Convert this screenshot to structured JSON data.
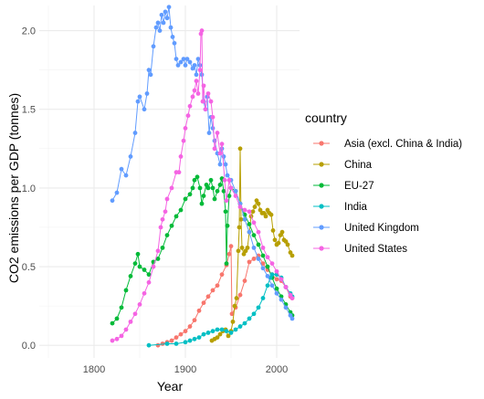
{
  "chart_data": {
    "type": "line",
    "xlabel": "Year",
    "ylabel": "CO2 emissions per GDP (tonnes)",
    "xlim": [
      1740,
      2025
    ],
    "ylim": [
      -0.08,
      2.16
    ],
    "x_ticks": [
      1800,
      1900,
      2000
    ],
    "x_tick_labels": [
      "1800",
      "1900",
      "2000"
    ],
    "y_ticks": [
      0,
      0.5,
      1,
      1.5,
      2
    ],
    "y_tick_labels": [
      "0.0",
      "0.5",
      "1.0",
      "1.5",
      "2.0"
    ],
    "grid": true,
    "legend_title": "country",
    "legend_position": "right",
    "series": [
      {
        "name": "Asia (excl. China & India)",
        "color": "#F8766D",
        "points": [
          [
            1870,
            0.0
          ],
          [
            1875,
            0.01
          ],
          [
            1880,
            0.02
          ],
          [
            1885,
            0.03
          ],
          [
            1890,
            0.05
          ],
          [
            1895,
            0.07
          ],
          [
            1900,
            0.09
          ],
          [
            1905,
            0.12
          ],
          [
            1910,
            0.16
          ],
          [
            1915,
            0.22
          ],
          [
            1920,
            0.27
          ],
          [
            1925,
            0.31
          ],
          [
            1930,
            0.35
          ],
          [
            1935,
            0.38
          ],
          [
            1940,
            0.45
          ],
          [
            1945,
            0.51
          ],
          [
            1948,
            0.58
          ],
          [
            1950,
            0.63
          ],
          [
            1951,
            0.2
          ],
          [
            1955,
            0.24
          ],
          [
            1960,
            0.32
          ],
          [
            1965,
            0.41
          ],
          [
            1970,
            0.53
          ],
          [
            1975,
            0.55
          ],
          [
            1980,
            0.57
          ],
          [
            1985,
            0.52
          ],
          [
            1990,
            0.48
          ],
          [
            1995,
            0.45
          ],
          [
            2000,
            0.42
          ],
          [
            2005,
            0.41
          ],
          [
            2010,
            0.37
          ],
          [
            2015,
            0.31
          ],
          [
            2017,
            0.3
          ]
        ]
      },
      {
        "name": "China",
        "color": "#B79F00",
        "points": [
          [
            1929,
            0.03
          ],
          [
            1932,
            0.04
          ],
          [
            1935,
            0.05
          ],
          [
            1938,
            0.07
          ],
          [
            1941,
            0.09
          ],
          [
            1944,
            0.1
          ],
          [
            1947,
            0.06
          ],
          [
            1950,
            0.09
          ],
          [
            1952,
            0.15
          ],
          [
            1954,
            0.25
          ],
          [
            1956,
            0.3
          ],
          [
            1958,
            0.6
          ],
          [
            1959,
            0.75
          ],
          [
            1960,
            1.25
          ],
          [
            1961,
            0.8
          ],
          [
            1962,
            0.62
          ],
          [
            1964,
            0.58
          ],
          [
            1966,
            0.6
          ],
          [
            1968,
            0.62
          ],
          [
            1970,
            0.72
          ],
          [
            1972,
            0.82
          ],
          [
            1974,
            0.85
          ],
          [
            1976,
            0.88
          ],
          [
            1978,
            0.92
          ],
          [
            1980,
            0.9
          ],
          [
            1982,
            0.86
          ],
          [
            1984,
            0.84
          ],
          [
            1986,
            0.84
          ],
          [
            1988,
            0.82
          ],
          [
            1990,
            0.86
          ],
          [
            1992,
            0.84
          ],
          [
            1994,
            0.83
          ],
          [
            1996,
            0.73
          ],
          [
            1998,
            0.67
          ],
          [
            2000,
            0.64
          ],
          [
            2002,
            0.65
          ],
          [
            2004,
            0.7
          ],
          [
            2006,
            0.72
          ],
          [
            2008,
            0.67
          ],
          [
            2010,
            0.66
          ],
          [
            2012,
            0.64
          ],
          [
            2015,
            0.59
          ],
          [
            2017,
            0.57
          ]
        ]
      },
      {
        "name": "EU-27",
        "color": "#00BA38",
        "points": [
          [
            1820,
            0.14
          ],
          [
            1825,
            0.17
          ],
          [
            1830,
            0.24
          ],
          [
            1835,
            0.35
          ],
          [
            1840,
            0.44
          ],
          [
            1845,
            0.52
          ],
          [
            1848,
            0.58
          ],
          [
            1850,
            0.5
          ],
          [
            1855,
            0.48
          ],
          [
            1860,
            0.45
          ],
          [
            1865,
            0.53
          ],
          [
            1870,
            0.55
          ],
          [
            1875,
            0.62
          ],
          [
            1880,
            0.7
          ],
          [
            1885,
            0.76
          ],
          [
            1890,
            0.82
          ],
          [
            1895,
            0.86
          ],
          [
            1900,
            0.93
          ],
          [
            1905,
            0.96
          ],
          [
            1908,
            1.0
          ],
          [
            1910,
            1.05
          ],
          [
            1913,
            1.07
          ],
          [
            1916,
            1.0
          ],
          [
            1918,
            0.9
          ],
          [
            1920,
            0.95
          ],
          [
            1923,
            1.02
          ],
          [
            1925,
            1.0
          ],
          [
            1928,
            1.05
          ],
          [
            1930,
            1.0
          ],
          [
            1932,
            0.93
          ],
          [
            1935,
            0.98
          ],
          [
            1938,
            1.02
          ],
          [
            1940,
            1.06
          ],
          [
            1942,
            0.98
          ],
          [
            1944,
            0.85
          ],
          [
            1945,
            0.52
          ],
          [
            1946,
            0.76
          ],
          [
            1948,
            0.95
          ],
          [
            1950,
            1.0
          ],
          [
            1955,
            0.98
          ],
          [
            1960,
            0.9
          ],
          [
            1965,
            0.83
          ],
          [
            1970,
            0.77
          ],
          [
            1975,
            0.7
          ],
          [
            1980,
            0.64
          ],
          [
            1985,
            0.57
          ],
          [
            1990,
            0.5
          ],
          [
            1995,
            0.43
          ],
          [
            2000,
            0.36
          ],
          [
            2005,
            0.31
          ],
          [
            2010,
            0.26
          ],
          [
            2015,
            0.21
          ],
          [
            2017,
            0.19
          ]
        ]
      },
      {
        "name": "India",
        "color": "#00BFC4",
        "points": [
          [
            1860,
            0.0
          ],
          [
            1880,
            0.01
          ],
          [
            1890,
            0.01
          ],
          [
            1900,
            0.02
          ],
          [
            1905,
            0.03
          ],
          [
            1910,
            0.04
          ],
          [
            1915,
            0.05
          ],
          [
            1920,
            0.07
          ],
          [
            1925,
            0.08
          ],
          [
            1930,
            0.09
          ],
          [
            1935,
            0.1
          ],
          [
            1940,
            0.1
          ],
          [
            1945,
            0.09
          ],
          [
            1950,
            0.08
          ],
          [
            1955,
            0.1
          ],
          [
            1960,
            0.12
          ],
          [
            1965,
            0.14
          ],
          [
            1970,
            0.17
          ],
          [
            1975,
            0.2
          ],
          [
            1980,
            0.24
          ],
          [
            1985,
            0.3
          ],
          [
            1990,
            0.38
          ],
          [
            1993,
            0.43
          ],
          [
            1995,
            0.45
          ],
          [
            2000,
            0.45
          ],
          [
            2005,
            0.43
          ],
          [
            2010,
            0.37
          ],
          [
            2015,
            0.33
          ],
          [
            2017,
            0.31
          ]
        ]
      },
      {
        "name": "United Kingdom",
        "color": "#619CFF",
        "points": [
          [
            1820,
            0.92
          ],
          [
            1825,
            0.97
          ],
          [
            1830,
            1.12
          ],
          [
            1835,
            1.08
          ],
          [
            1840,
            1.2
          ],
          [
            1845,
            1.35
          ],
          [
            1848,
            1.55
          ],
          [
            1850,
            1.58
          ],
          [
            1855,
            1.5
          ],
          [
            1858,
            1.6
          ],
          [
            1860,
            1.75
          ],
          [
            1862,
            1.72
          ],
          [
            1865,
            1.9
          ],
          [
            1868,
            2.02
          ],
          [
            1870,
            2.05
          ],
          [
            1872,
            2.0
          ],
          [
            1874,
            2.1
          ],
          [
            1876,
            2.05
          ],
          [
            1878,
            2.12
          ],
          [
            1880,
            2.08
          ],
          [
            1882,
            2.15
          ],
          [
            1884,
            2.02
          ],
          [
            1886,
            1.96
          ],
          [
            1888,
            1.92
          ],
          [
            1890,
            1.82
          ],
          [
            1892,
            1.78
          ],
          [
            1895,
            1.8
          ],
          [
            1898,
            1.82
          ],
          [
            1900,
            1.78
          ],
          [
            1902,
            1.82
          ],
          [
            1905,
            1.8
          ],
          [
            1908,
            1.76
          ],
          [
            1910,
            1.78
          ],
          [
            1912,
            1.72
          ],
          [
            1914,
            1.82
          ],
          [
            1916,
            1.78
          ],
          [
            1918,
            1.72
          ],
          [
            1920,
            1.55
          ],
          [
            1922,
            1.5
          ],
          [
            1924,
            1.58
          ],
          [
            1926,
            1.35
          ],
          [
            1928,
            1.45
          ],
          [
            1930,
            1.38
          ],
          [
            1932,
            1.3
          ],
          [
            1935,
            1.22
          ],
          [
            1938,
            1.15
          ],
          [
            1940,
            1.25
          ],
          [
            1942,
            1.2
          ],
          [
            1944,
            1.15
          ],
          [
            1946,
            1.08
          ],
          [
            1950,
            1.05
          ],
          [
            1955,
            0.98
          ],
          [
            1960,
            0.9
          ],
          [
            1965,
            0.8
          ],
          [
            1970,
            0.72
          ],
          [
            1975,
            0.62
          ],
          [
            1980,
            0.55
          ],
          [
            1985,
            0.49
          ],
          [
            1990,
            0.44
          ],
          [
            1995,
            0.38
          ],
          [
            2000,
            0.33
          ],
          [
            2005,
            0.29
          ],
          [
            2010,
            0.24
          ],
          [
            2015,
            0.19
          ],
          [
            2017,
            0.17
          ]
        ]
      },
      {
        "name": "United States",
        "color": "#F564E3",
        "points": [
          [
            1820,
            0.03
          ],
          [
            1825,
            0.04
          ],
          [
            1830,
            0.06
          ],
          [
            1835,
            0.1
          ],
          [
            1840,
            0.15
          ],
          [
            1845,
            0.2
          ],
          [
            1850,
            0.26
          ],
          [
            1855,
            0.33
          ],
          [
            1860,
            0.4
          ],
          [
            1865,
            0.5
          ],
          [
            1870,
            0.6
          ],
          [
            1873,
            0.75
          ],
          [
            1875,
            0.8
          ],
          [
            1878,
            0.85
          ],
          [
            1880,
            0.93
          ],
          [
            1885,
            1.0
          ],
          [
            1890,
            1.1
          ],
          [
            1893,
            1.1
          ],
          [
            1895,
            1.2
          ],
          [
            1898,
            1.3
          ],
          [
            1900,
            1.38
          ],
          [
            1903,
            1.46
          ],
          [
            1905,
            1.52
          ],
          [
            1908,
            1.58
          ],
          [
            1910,
            1.62
          ],
          [
            1912,
            1.68
          ],
          [
            1914,
            1.6
          ],
          [
            1916,
            1.75
          ],
          [
            1917,
            1.98
          ],
          [
            1918,
            2.0
          ],
          [
            1919,
            1.55
          ],
          [
            1920,
            1.65
          ],
          [
            1922,
            1.5
          ],
          [
            1925,
            1.6
          ],
          [
            1928,
            1.55
          ],
          [
            1930,
            1.45
          ],
          [
            1932,
            1.25
          ],
          [
            1935,
            1.35
          ],
          [
            1938,
            1.22
          ],
          [
            1940,
            1.28
          ],
          [
            1943,
            1.05
          ],
          [
            1945,
            0.92
          ],
          [
            1948,
            1.05
          ],
          [
            1950,
            1.0
          ],
          [
            1955,
            0.95
          ],
          [
            1960,
            0.88
          ],
          [
            1965,
            0.86
          ],
          [
            1970,
            0.85
          ],
          [
            1975,
            0.78
          ],
          [
            1980,
            0.72
          ],
          [
            1985,
            0.62
          ],
          [
            1990,
            0.56
          ],
          [
            1995,
            0.52
          ],
          [
            2000,
            0.47
          ],
          [
            2005,
            0.42
          ],
          [
            2010,
            0.37
          ],
          [
            2015,
            0.32
          ],
          [
            2017,
            0.3
          ]
        ]
      }
    ]
  }
}
